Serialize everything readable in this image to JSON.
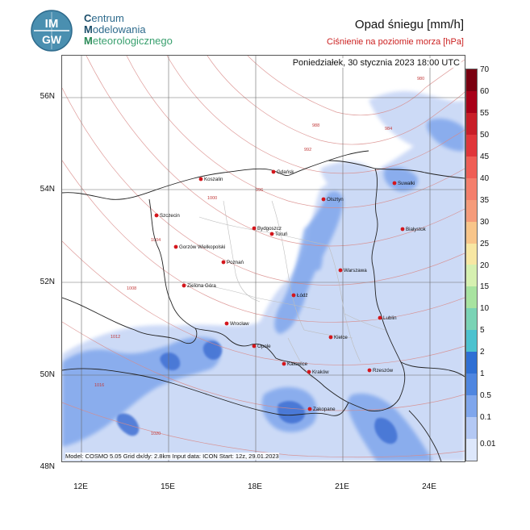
{
  "header": {
    "org_line1_cap": "C",
    "org_line1_rest": "entrum",
    "org_line2_cap": "M",
    "org_line2_rest": "odelowania",
    "org_line3_cap": "M",
    "org_line3_rest": "eteorologicznego",
    "logo_top": "IM",
    "logo_bottom": "GW",
    "title_main": "Opad śniegu [mm/h]",
    "title_sub": "Ciśnienie na poziomie morza [hPa]"
  },
  "map": {
    "datestamp": "Poniedziałek, 30 stycznia 2023 18:00 UTC",
    "footer": "Model: COSMO 5.05  Grid dx/dy: 2.8km  Input data: ICON  Start: 12z, 29.01.2023",
    "lat_labels": [
      "56N",
      "54N",
      "52N",
      "50N",
      "48N"
    ],
    "lon_labels": [
      "12E",
      "15E",
      "18E",
      "21E",
      "24E"
    ],
    "cities": [
      {
        "name": "Koszalin"
      },
      {
        "name": "Gdańsk"
      },
      {
        "name": "Suwałki"
      },
      {
        "name": "Olsztyn"
      },
      {
        "name": "Szczecin"
      },
      {
        "name": "Bydgoszcz"
      },
      {
        "name": "Toruń"
      },
      {
        "name": "Białystok"
      },
      {
        "name": "Gorzów Wielkopolski"
      },
      {
        "name": "Poznań"
      },
      {
        "name": "Warszawa"
      },
      {
        "name": "Zielona Góra"
      },
      {
        "name": "Łódź"
      },
      {
        "name": "Wrocław"
      },
      {
        "name": "Lublin"
      },
      {
        "name": "Kielce"
      },
      {
        "name": "Opole"
      },
      {
        "name": "Katowice"
      },
      {
        "name": "Kraków"
      },
      {
        "name": "Rzeszów"
      },
      {
        "name": "Zakopane"
      }
    ],
    "isobar_labels": [
      "980",
      "984",
      "988",
      "992",
      "996",
      "1000",
      "1004",
      "1008",
      "1012",
      "1016",
      "1020"
    ]
  },
  "legend": {
    "unit": "mm/h",
    "levels": [
      "70",
      "60",
      "55",
      "50",
      "45",
      "40",
      "35",
      "30",
      "25",
      "20",
      "15",
      "10",
      "5",
      "2",
      "1",
      "0.5",
      "0.1",
      "0.01"
    ],
    "colors": [
      "#7a0010",
      "#a80018",
      "#c81e28",
      "#e0363a",
      "#ef5e55",
      "#f47f6c",
      "#f59b7a",
      "#f8c58a",
      "#f7e7a3",
      "#d6f0b0",
      "#a8e3a0",
      "#7ad3b5",
      "#4cc2cf",
      "#2f6fd4",
      "#4f86e0",
      "#7fa6ec",
      "#b3c8f4",
      "#dde7fb"
    ]
  }
}
